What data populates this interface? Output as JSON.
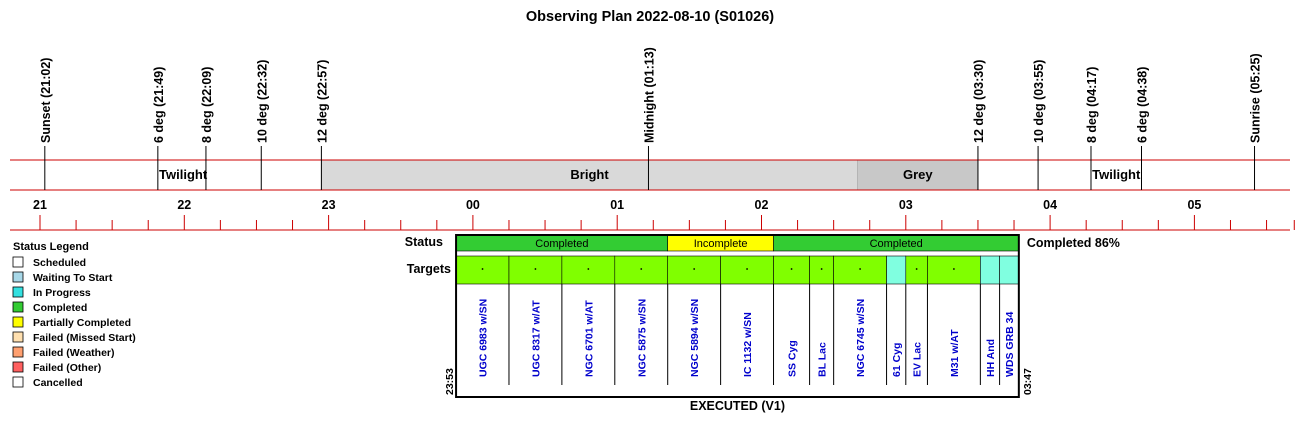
{
  "title": "Observing Plan 2022-08-10 (S01026)",
  "colors": {
    "line": "#cc0000",
    "bright": "#d9d9d9",
    "grey": "#c8c8c8",
    "completed": "#33cc33",
    "incomplete": "#ffff00",
    "target_green": "#80ff00",
    "target_cyan": "#80ffe0",
    "name_text": "#0000cc"
  },
  "chart_data": {
    "type": "timeline",
    "events": [
      {
        "label": "Sunset (21:02)",
        "time": "21:02"
      },
      {
        "label": "6 deg (21:49)",
        "time": "21:49"
      },
      {
        "label": "8 deg (22:09)",
        "time": "22:09"
      },
      {
        "label": "10 deg (22:32)",
        "time": "22:32"
      },
      {
        "label": "12 deg (22:57)",
        "time": "22:57"
      },
      {
        "label": "Midnight (01:13)",
        "time": "01:13"
      },
      {
        "label": "12 deg (03:30)",
        "time": "03:30"
      },
      {
        "label": "10 deg (03:55)",
        "time": "03:55"
      },
      {
        "label": "8 deg (04:17)",
        "time": "04:17"
      },
      {
        "label": "6 deg (04:38)",
        "time": "04:38"
      },
      {
        "label": "Sunrise (05:25)",
        "time": "05:25"
      }
    ],
    "bands": [
      {
        "label": "Twilight",
        "start": "21:02",
        "end": "22:57",
        "fill": "none"
      },
      {
        "label": "Bright",
        "start": "22:57",
        "end": "02:40",
        "fill": "bright"
      },
      {
        "label": "Grey",
        "start": "02:40",
        "end": "03:30",
        "fill": "grey"
      },
      {
        "label": "Twilight",
        "start": "03:30",
        "end": "05:25",
        "fill": "none"
      }
    ],
    "hour_labels": [
      "21",
      "22",
      "23",
      "00",
      "01",
      "02",
      "03",
      "04",
      "05"
    ],
    "status_segments": [
      {
        "label": "Completed",
        "start": "23:53",
        "end": "01:21",
        "status": "completed"
      },
      {
        "label": "Incomplete",
        "start": "01:21",
        "end": "02:05",
        "status": "incomplete"
      },
      {
        "label": "Completed",
        "start": "02:05",
        "end": "03:47",
        "status": "completed"
      }
    ],
    "status_label": "Status",
    "targets_label": "Targets",
    "completion_text": "Completed 86%",
    "start_time": "23:53",
    "end_time": "03:47",
    "footer": "EXECUTED (V1)",
    "targets": [
      {
        "name": "UGC 6983 w/SN",
        "start": "23:53",
        "end": "00:15",
        "color": "green"
      },
      {
        "name": "UGC 8317 w/AT",
        "start": "00:15",
        "end": "00:37",
        "color": "green"
      },
      {
        "name": "NGC 6701 w/AT",
        "start": "00:37",
        "end": "00:59",
        "color": "green"
      },
      {
        "name": "NGC 5875 w/SN",
        "start": "00:59",
        "end": "01:21",
        "color": "green"
      },
      {
        "name": "NGC 5894 w/SN",
        "start": "01:21",
        "end": "01:43",
        "color": "green"
      },
      {
        "name": "IC 1132 w/SN",
        "start": "01:43",
        "end": "02:05",
        "color": "green"
      },
      {
        "name": "SS Cyg",
        "start": "02:05",
        "end": "02:20",
        "color": "green"
      },
      {
        "name": "BL Lac",
        "start": "02:20",
        "end": "02:30",
        "color": "green"
      },
      {
        "name": "NGC 6745 w/SN",
        "start": "02:30",
        "end": "02:52",
        "color": "green"
      },
      {
        "name": "61 Cyg",
        "start": "02:52",
        "end": "03:00",
        "color": "cyan"
      },
      {
        "name": "EV Lac",
        "start": "03:00",
        "end": "03:09",
        "color": "green"
      },
      {
        "name": "M31 w/AT",
        "start": "03:09",
        "end": "03:31",
        "color": "green"
      },
      {
        "name": "HH And",
        "start": "03:31",
        "end": "03:39",
        "color": "cyan"
      },
      {
        "name": "WDS GRB 34",
        "start": "03:39",
        "end": "03:47",
        "color": "cyan"
      }
    ]
  },
  "legend": {
    "title": "Status Legend",
    "items": [
      {
        "label": "Scheduled",
        "color": "#ffffff"
      },
      {
        "label": "Waiting To Start",
        "color": "#a8d8e8"
      },
      {
        "label": "In Progress",
        "color": "#33e0e0"
      },
      {
        "label": "Completed",
        "color": "#33cc33"
      },
      {
        "label": "Partially Completed",
        "color": "#ffff00"
      },
      {
        "label": "Failed (Missed Start)",
        "color": "#ffe0b0"
      },
      {
        "label": "Failed (Weather)",
        "color": "#ffa070"
      },
      {
        "label": "Failed (Other)",
        "color": "#ff6060"
      },
      {
        "label": "Cancelled",
        "color": "#ffffff"
      }
    ]
  }
}
